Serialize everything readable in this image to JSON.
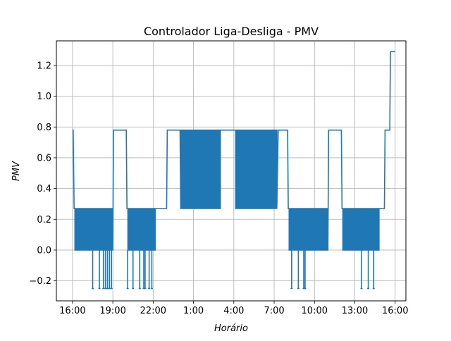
{
  "chart_data": {
    "type": "line",
    "title": "Controlador Liga-Desliga - PMV",
    "xlabel": "Horário",
    "ylabel": "PMV",
    "x_unit": "hours from 16:00",
    "xlim": [
      -1.2,
      24.8
    ],
    "ylim": [
      -0.33,
      1.36
    ],
    "grid": true,
    "x_ticks": [
      {
        "x": 0,
        "label": "16:00"
      },
      {
        "x": 3,
        "label": "19:00"
      },
      {
        "x": 6,
        "label": "22:00"
      },
      {
        "x": 9,
        "label": "1:00"
      },
      {
        "x": 12,
        "label": "4:00"
      },
      {
        "x": 15,
        "label": "7:00"
      },
      {
        "x": 18,
        "label": "10:00"
      },
      {
        "x": 21,
        "label": "13:00"
      },
      {
        "x": 24,
        "label": "16:00"
      }
    ],
    "y_ticks": [
      {
        "y": -0.2,
        "label": "−0.2"
      },
      {
        "y": 0.0,
        "label": "0.0"
      },
      {
        "y": 0.2,
        "label": "0.2"
      },
      {
        "y": 0.4,
        "label": "0.4"
      },
      {
        "y": 0.6,
        "label": "0.6"
      },
      {
        "y": 0.8,
        "label": "0.8"
      },
      {
        "y": 1.0,
        "label": "1.0"
      },
      {
        "y": 1.2,
        "label": "1.2"
      }
    ],
    "series": [
      {
        "color": "#1f77b4",
        "segments": [
          {
            "type": "step",
            "x": [
              0,
              0.05,
              0.12
            ],
            "y": [
              0.78,
              0.78,
              0.27
            ]
          },
          {
            "type": "osc",
            "x0": 0.12,
            "x1": 3.0,
            "period": 0.12,
            "levels": [
              0.27,
              0.0
            ]
          },
          {
            "type": "step",
            "x": [
              3.0,
              3.05,
              3.3,
              3.5
            ],
            "y": [
              0.0,
              0.78,
              0.78,
              0.78
            ]
          },
          {
            "type": "step",
            "x": [
              3.5,
              4.0,
              4.05
            ],
            "y": [
              0.78,
              0.78,
              0.27
            ]
          },
          {
            "type": "osc",
            "x0": 4.05,
            "x1": 6.2,
            "period": 0.14,
            "levels": [
              0.27,
              0.0
            ]
          },
          {
            "type": "step",
            "x": [
              6.2,
              7.0,
              7.05
            ],
            "y": [
              0.27,
              0.27,
              0.78
            ]
          },
          {
            "type": "step",
            "x": [
              7.05,
              8.0,
              8.05
            ],
            "y": [
              0.78,
              0.78,
              0.27
            ]
          },
          {
            "type": "osc",
            "x0": 8.05,
            "x1": 11.0,
            "period": 0.06,
            "levels": [
              0.27,
              0.78
            ]
          },
          {
            "type": "step",
            "x": [
              11.0,
              11.5,
              12.0
            ],
            "y": [
              0.78,
              0.78,
              0.78
            ]
          },
          {
            "type": "osc",
            "x0": 12.1,
            "x1": 15.2,
            "period": 0.07,
            "levels": [
              0.78,
              0.27
            ]
          },
          {
            "type": "step",
            "x": [
              15.2,
              15.3,
              16.0,
              16.05
            ],
            "y": [
              0.27,
              0.78,
              0.78,
              0.27
            ]
          },
          {
            "type": "osc",
            "x0": 16.05,
            "x1": 19.0,
            "period": 0.13,
            "levels": [
              0.27,
              0.0
            ]
          },
          {
            "type": "step",
            "x": [
              19.0,
              19.05,
              20.0,
              20.05
            ],
            "y": [
              0.0,
              0.78,
              0.78,
              0.27
            ]
          },
          {
            "type": "osc",
            "x0": 20.05,
            "x1": 22.8,
            "period": 0.12,
            "levels": [
              0.27,
              0.0
            ]
          },
          {
            "type": "step",
            "x": [
              22.8,
              23.2,
              23.25,
              23.6,
              23.65,
              24.0
            ],
            "y": [
              0.27,
              0.27,
              0.78,
              0.78,
              1.29,
              1.29
            ]
          }
        ],
        "spikes": [
          {
            "x": 1.5,
            "y": -0.25
          },
          {
            "x": 2.0,
            "y": -0.25
          },
          {
            "x": 2.3,
            "y": -0.25
          },
          {
            "x": 2.45,
            "y": -0.25
          },
          {
            "x": 2.6,
            "y": -0.25
          },
          {
            "x": 2.75,
            "y": -0.25
          },
          {
            "x": 2.9,
            "y": -0.25
          },
          {
            "x": 4.1,
            "y": -0.25
          },
          {
            "x": 4.5,
            "y": -0.25
          },
          {
            "x": 5.0,
            "y": -0.25
          },
          {
            "x": 5.3,
            "y": -0.25
          },
          {
            "x": 5.4,
            "y": -0.25
          },
          {
            "x": 5.7,
            "y": -0.25
          },
          {
            "x": 5.9,
            "y": -0.25
          },
          {
            "x": 16.3,
            "y": -0.25
          },
          {
            "x": 16.8,
            "y": -0.25
          },
          {
            "x": 17.2,
            "y": -0.25
          },
          {
            "x": 17.3,
            "y": -0.25
          },
          {
            "x": 21.5,
            "y": -0.25
          },
          {
            "x": 22.0,
            "y": -0.25
          },
          {
            "x": 22.4,
            "y": -0.25
          }
        ]
      }
    ]
  }
}
